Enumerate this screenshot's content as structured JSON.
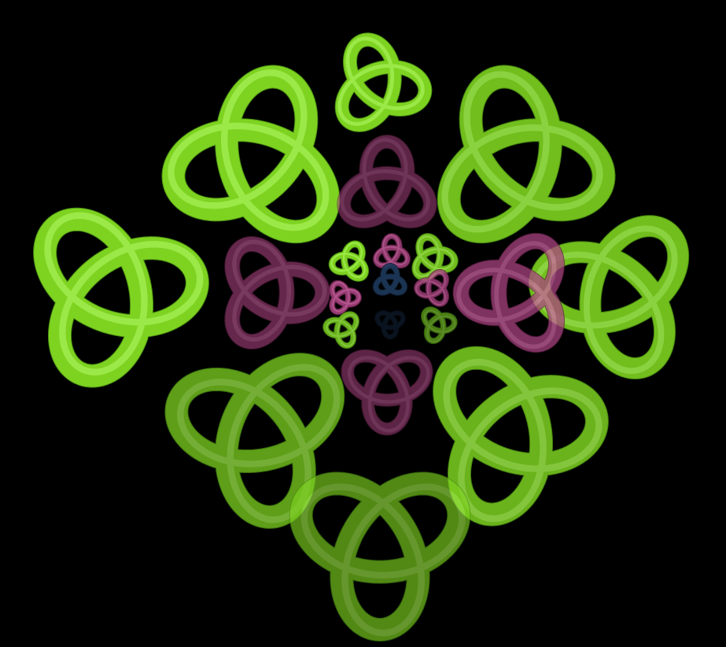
{
  "scene": {
    "background": "#000000",
    "colors": {
      "green": "#7ed321",
      "green_light": "#a8f25a",
      "green_dark": "#4a8f12",
      "magenta": "#a8437f",
      "magenta_light": "#d86fae",
      "magenta_dark": "#5e1f45",
      "navy": "#1e3a5c",
      "navy_dark": "#0f1f33"
    },
    "knots": [
      {
        "name": "knot-top-small",
        "color": "green",
        "opacity": 1
      },
      {
        "name": "knot-top-left",
        "color": "green",
        "opacity": 1
      },
      {
        "name": "knot-top-right",
        "color": "green",
        "opacity": 0.9
      },
      {
        "name": "knot-left",
        "color": "green",
        "opacity": 1
      },
      {
        "name": "knot-right",
        "color": "green",
        "opacity": 0.9
      },
      {
        "name": "knot-bottom-left",
        "color": "green",
        "opacity": 0.75
      },
      {
        "name": "knot-bottom-right",
        "color": "green",
        "opacity": 0.85
      },
      {
        "name": "knot-bottom",
        "color": "green",
        "opacity": 0.65
      },
      {
        "name": "knot-mid-top",
        "color": "magenta",
        "opacity": 0.55
      },
      {
        "name": "knot-mid-left",
        "color": "magenta",
        "opacity": 0.6
      },
      {
        "name": "knot-mid-right",
        "color": "magenta",
        "opacity": 0.75
      },
      {
        "name": "knot-mid-bottom",
        "color": "magenta",
        "opacity": 0.55
      },
      {
        "name": "knot-inner-top-left",
        "color": "green",
        "opacity": 1
      },
      {
        "name": "knot-inner-top",
        "color": "magenta",
        "opacity": 0.85
      },
      {
        "name": "knot-inner-top-right",
        "color": "green",
        "opacity": 0.9
      },
      {
        "name": "knot-inner-left",
        "color": "magenta",
        "opacity": 0.9
      },
      {
        "name": "knot-inner-right",
        "color": "magenta",
        "opacity": 0.8
      },
      {
        "name": "knot-inner-bottom-left",
        "color": "green",
        "opacity": 0.85
      },
      {
        "name": "knot-inner-bottom-right",
        "color": "green",
        "opacity": 0.6
      },
      {
        "name": "knot-center",
        "color": "navy",
        "opacity": 0.9
      },
      {
        "name": "knot-inner-bottom",
        "color": "navy",
        "opacity": 0.35
      }
    ]
  }
}
